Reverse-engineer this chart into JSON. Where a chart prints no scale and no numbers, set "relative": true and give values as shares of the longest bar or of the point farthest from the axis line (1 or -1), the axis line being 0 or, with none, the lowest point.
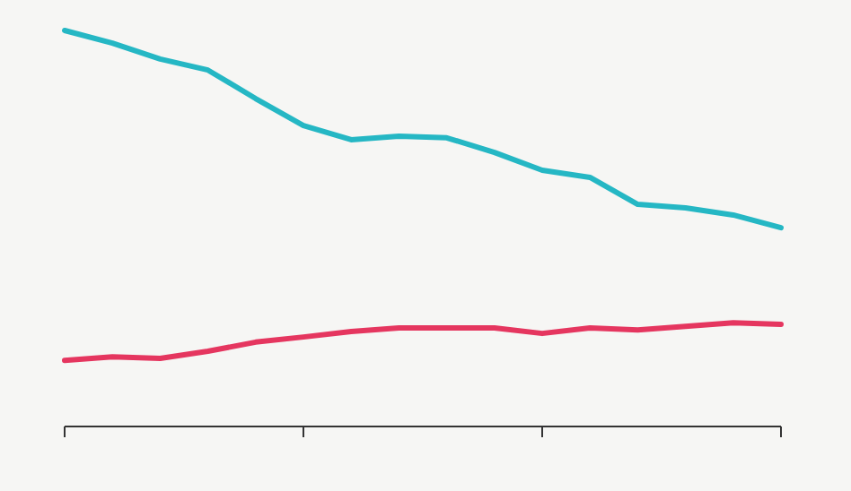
{
  "chart_data": {
    "type": "line",
    "relative": true,
    "categories": [
      null,
      null,
      null,
      null,
      null,
      null,
      null,
      null,
      null,
      null,
      null,
      null,
      null,
      null,
      null,
      null
    ],
    "marker": "none",
    "line_style": "solid",
    "series": [
      {
        "color": "#25b7c4",
        "values": [
          1,
          0.968,
          0.928,
          0.9,
          0.828,
          0.76,
          0.724,
          0.733,
          0.729,
          0.692,
          0.647,
          0.629,
          0.561,
          0.552,
          0.534,
          0.502
        ]
      },
      {
        "color": "#e5365f",
        "values": [
          0.167,
          0.176,
          0.172,
          0.19,
          0.213,
          0.226,
          0.24,
          0.249,
          0.249,
          0.249,
          0.235,
          0.249,
          0.244,
          0.253,
          0.262,
          0.258
        ]
      }
    ]
  }
}
